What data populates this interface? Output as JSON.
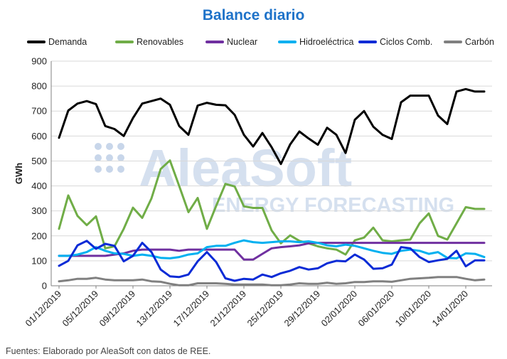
{
  "title": "Balance diario",
  "footer": "Fuentes: Elaborado por AleaSoft con datos de REE.",
  "watermark": {
    "brand": "AleaSoft",
    "tagline": "ENERGY FORECASTING"
  },
  "colors": {
    "grid": "#d9d9d9",
    "axis": "#808080",
    "watermark": "#c8d6ea"
  },
  "chart_data": {
    "type": "line",
    "title": "Balance diario",
    "ylabel": "GWh",
    "xlabel": "",
    "ylim": [
      0,
      900
    ],
    "yticks": [
      0,
      100,
      200,
      300,
      400,
      500,
      600,
      700,
      800,
      900
    ],
    "grid": true,
    "legend_position": "top",
    "x": [
      "01/12/2019",
      "02/12/2019",
      "03/12/2019",
      "04/12/2019",
      "05/12/2019",
      "06/12/2019",
      "07/12/2019",
      "08/12/2019",
      "09/12/2019",
      "10/12/2019",
      "11/12/2019",
      "12/12/2019",
      "13/12/2019",
      "14/12/2019",
      "15/12/2019",
      "16/12/2019",
      "17/12/2019",
      "18/12/2019",
      "19/12/2019",
      "20/12/2019",
      "21/12/2019",
      "22/12/2019",
      "23/12/2019",
      "24/12/2019",
      "25/12/2019",
      "26/12/2019",
      "27/12/2019",
      "28/12/2019",
      "29/12/2019",
      "30/12/2019",
      "31/12/2019",
      "01/01/2020",
      "02/01/2020",
      "03/01/2020",
      "04/01/2020",
      "05/01/2020",
      "06/01/2020",
      "07/01/2020",
      "08/01/2020",
      "09/01/2020",
      "10/01/2020",
      "11/01/2020",
      "12/01/2020",
      "13/01/2020",
      "14/01/2020",
      "15/01/2020",
      "16/01/2020"
    ],
    "xtick_labels": [
      "01/12/2019",
      "05/12/2019",
      "09/12/2019",
      "13/12/2019",
      "17/12/2019",
      "21/12/2019",
      "25/12/2019",
      "29/12/2019",
      "02/01/2020",
      "06/01/2020",
      "10/01/2020",
      "14/01/2020"
    ],
    "series": [
      {
        "name": "Demanda",
        "color": "#000000",
        "values": [
          593,
          702,
          730,
          740,
          728,
          640,
          628,
          600,
          672,
          730,
          740,
          750,
          725,
          640,
          605,
          722,
          733,
          725,
          723,
          685,
          605,
          558,
          612,
          555,
          488,
          566,
          618,
          590,
          565,
          633,
          605,
          532,
          665,
          700,
          637,
          605,
          588,
          735,
          762,
          762,
          762,
          682,
          648,
          778,
          788,
          778,
          778
        ]
      },
      {
        "name": "Renovables",
        "color": "#70ad47",
        "values": [
          228,
          362,
          280,
          243,
          278,
          150,
          158,
          228,
          313,
          272,
          350,
          468,
          502,
          400,
          295,
          352,
          228,
          320,
          408,
          398,
          318,
          312,
          312,
          222,
          170,
          202,
          180,
          170,
          158,
          150,
          145,
          125,
          182,
          193,
          233,
          182,
          178,
          182,
          185,
          250,
          290,
          200,
          185,
          250,
          315,
          308,
          308
        ]
      },
      {
        "name": "Nuclear",
        "color": "#7030a0",
        "values": [
          120,
          120,
          120,
          120,
          120,
          120,
          125,
          130,
          140,
          145,
          145,
          145,
          145,
          140,
          145,
          145,
          145,
          145,
          145,
          145,
          105,
          105,
          128,
          150,
          155,
          158,
          162,
          170,
          172,
          172,
          172,
          172,
          172,
          172,
          172,
          172,
          172,
          172,
          172,
          172,
          172,
          172,
          172,
          172,
          172,
          172,
          172
        ]
      },
      {
        "name": "Hidroeléctrica",
        "color": "#00b0f0",
        "values": [
          120,
          120,
          125,
          135,
          155,
          140,
          130,
          128,
          120,
          125,
          120,
          112,
          110,
          115,
          125,
          130,
          155,
          160,
          160,
          172,
          182,
          175,
          172,
          175,
          178,
          178,
          175,
          178,
          172,
          162,
          158,
          165,
          160,
          150,
          140,
          132,
          128,
          140,
          145,
          140,
          128,
          135,
          112,
          110,
          130,
          128,
          115
        ]
      },
      {
        "name": "Ciclos Comb.",
        "color": "#0a2bd6",
        "values": [
          80,
          100,
          162,
          180,
          148,
          168,
          160,
          98,
          120,
          172,
          135,
          65,
          38,
          35,
          45,
          98,
          135,
          95,
          30,
          20,
          28,
          25,
          45,
          35,
          50,
          60,
          75,
          65,
          70,
          90,
          100,
          98,
          125,
          105,
          68,
          70,
          85,
          155,
          150,
          115,
          95,
          102,
          108,
          140,
          78,
          102,
          102
        ]
      },
      {
        "name": "Carbón",
        "color": "#808080",
        "values": [
          18,
          22,
          28,
          28,
          32,
          25,
          22,
          22,
          22,
          25,
          18,
          16,
          8,
          2,
          2,
          10,
          10,
          10,
          8,
          5,
          5,
          5,
          5,
          2,
          2,
          5,
          10,
          8,
          8,
          12,
          8,
          10,
          15,
          15,
          18,
          18,
          16,
          22,
          28,
          30,
          32,
          35,
          35,
          35,
          28,
          22,
          25
        ]
      }
    ]
  }
}
